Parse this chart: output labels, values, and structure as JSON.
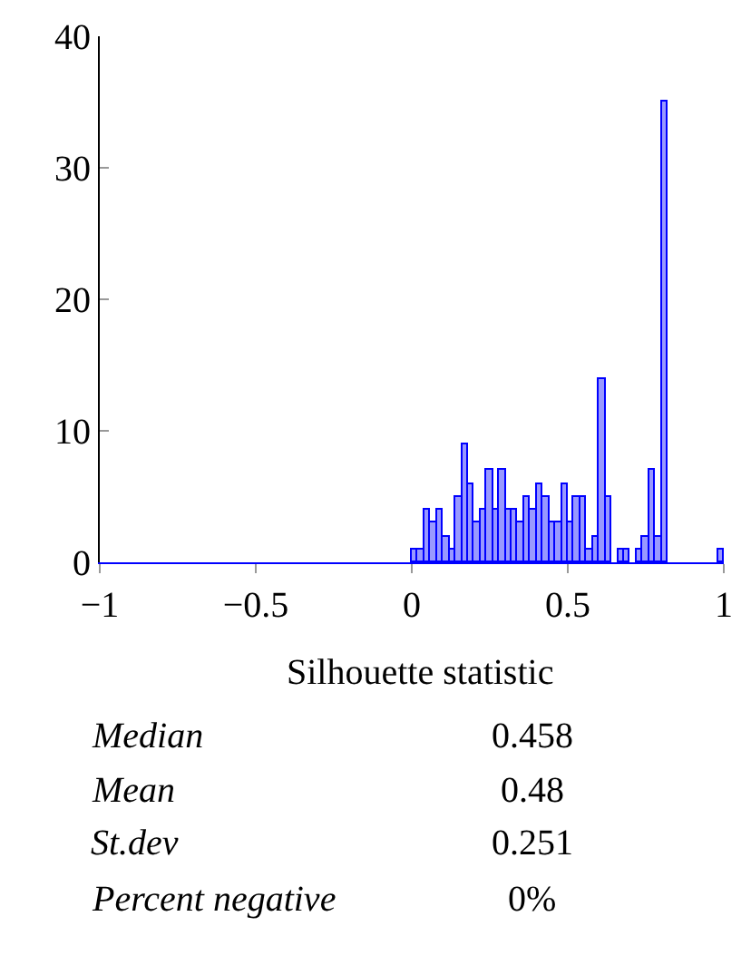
{
  "chart_data": {
    "type": "histogram",
    "xlabel": "Silhouette statistic",
    "bins": [
      0,
      0.02,
      0.04,
      0.06,
      0.08,
      0.1,
      0.12,
      0.14,
      0.16,
      0.18,
      0.2,
      0.22,
      0.24,
      0.26,
      0.28,
      0.3,
      0.32,
      0.34,
      0.36,
      0.38,
      0.4,
      0.42,
      0.44,
      0.46,
      0.48,
      0.5,
      0.52,
      0.54,
      0.56,
      0.58,
      0.6,
      0.62,
      0.64,
      0.66,
      0.68,
      0.7,
      0.72,
      0.74,
      0.76,
      0.78,
      0.8,
      0.82,
      0.84,
      0.86,
      0.88,
      0.9,
      0.92,
      0.94,
      0.96,
      0.98,
      1
    ],
    "values": [
      1,
      1,
      4,
      3,
      4,
      2,
      1,
      5,
      9,
      6,
      3,
      4,
      7,
      4,
      7,
      4,
      4,
      3,
      5,
      4,
      6,
      5,
      3,
      3,
      6,
      3,
      5,
      5,
      1,
      2,
      14,
      5,
      0,
      1,
      1,
      0,
      1,
      2,
      7,
      2,
      35,
      0,
      0,
      0,
      0,
      0,
      0,
      0,
      0,
      1
    ],
    "color": "#9999ff",
    "xlim": [
      -1,
      1
    ],
    "xticks": [
      {
        "value": -1,
        "label": "−1"
      },
      {
        "value": -0.5,
        "label": "−0.5"
      },
      0,
      0.5,
      1
    ],
    "ylim": [
      0,
      40
    ],
    "yticks": [
      0,
      10,
      20,
      30,
      40
    ],
    "annotations": [
      "Median",
      "0.458",
      "Mean",
      "0.48",
      "St.dev",
      "0.251",
      "Percent negative",
      "0%"
    ]
  }
}
